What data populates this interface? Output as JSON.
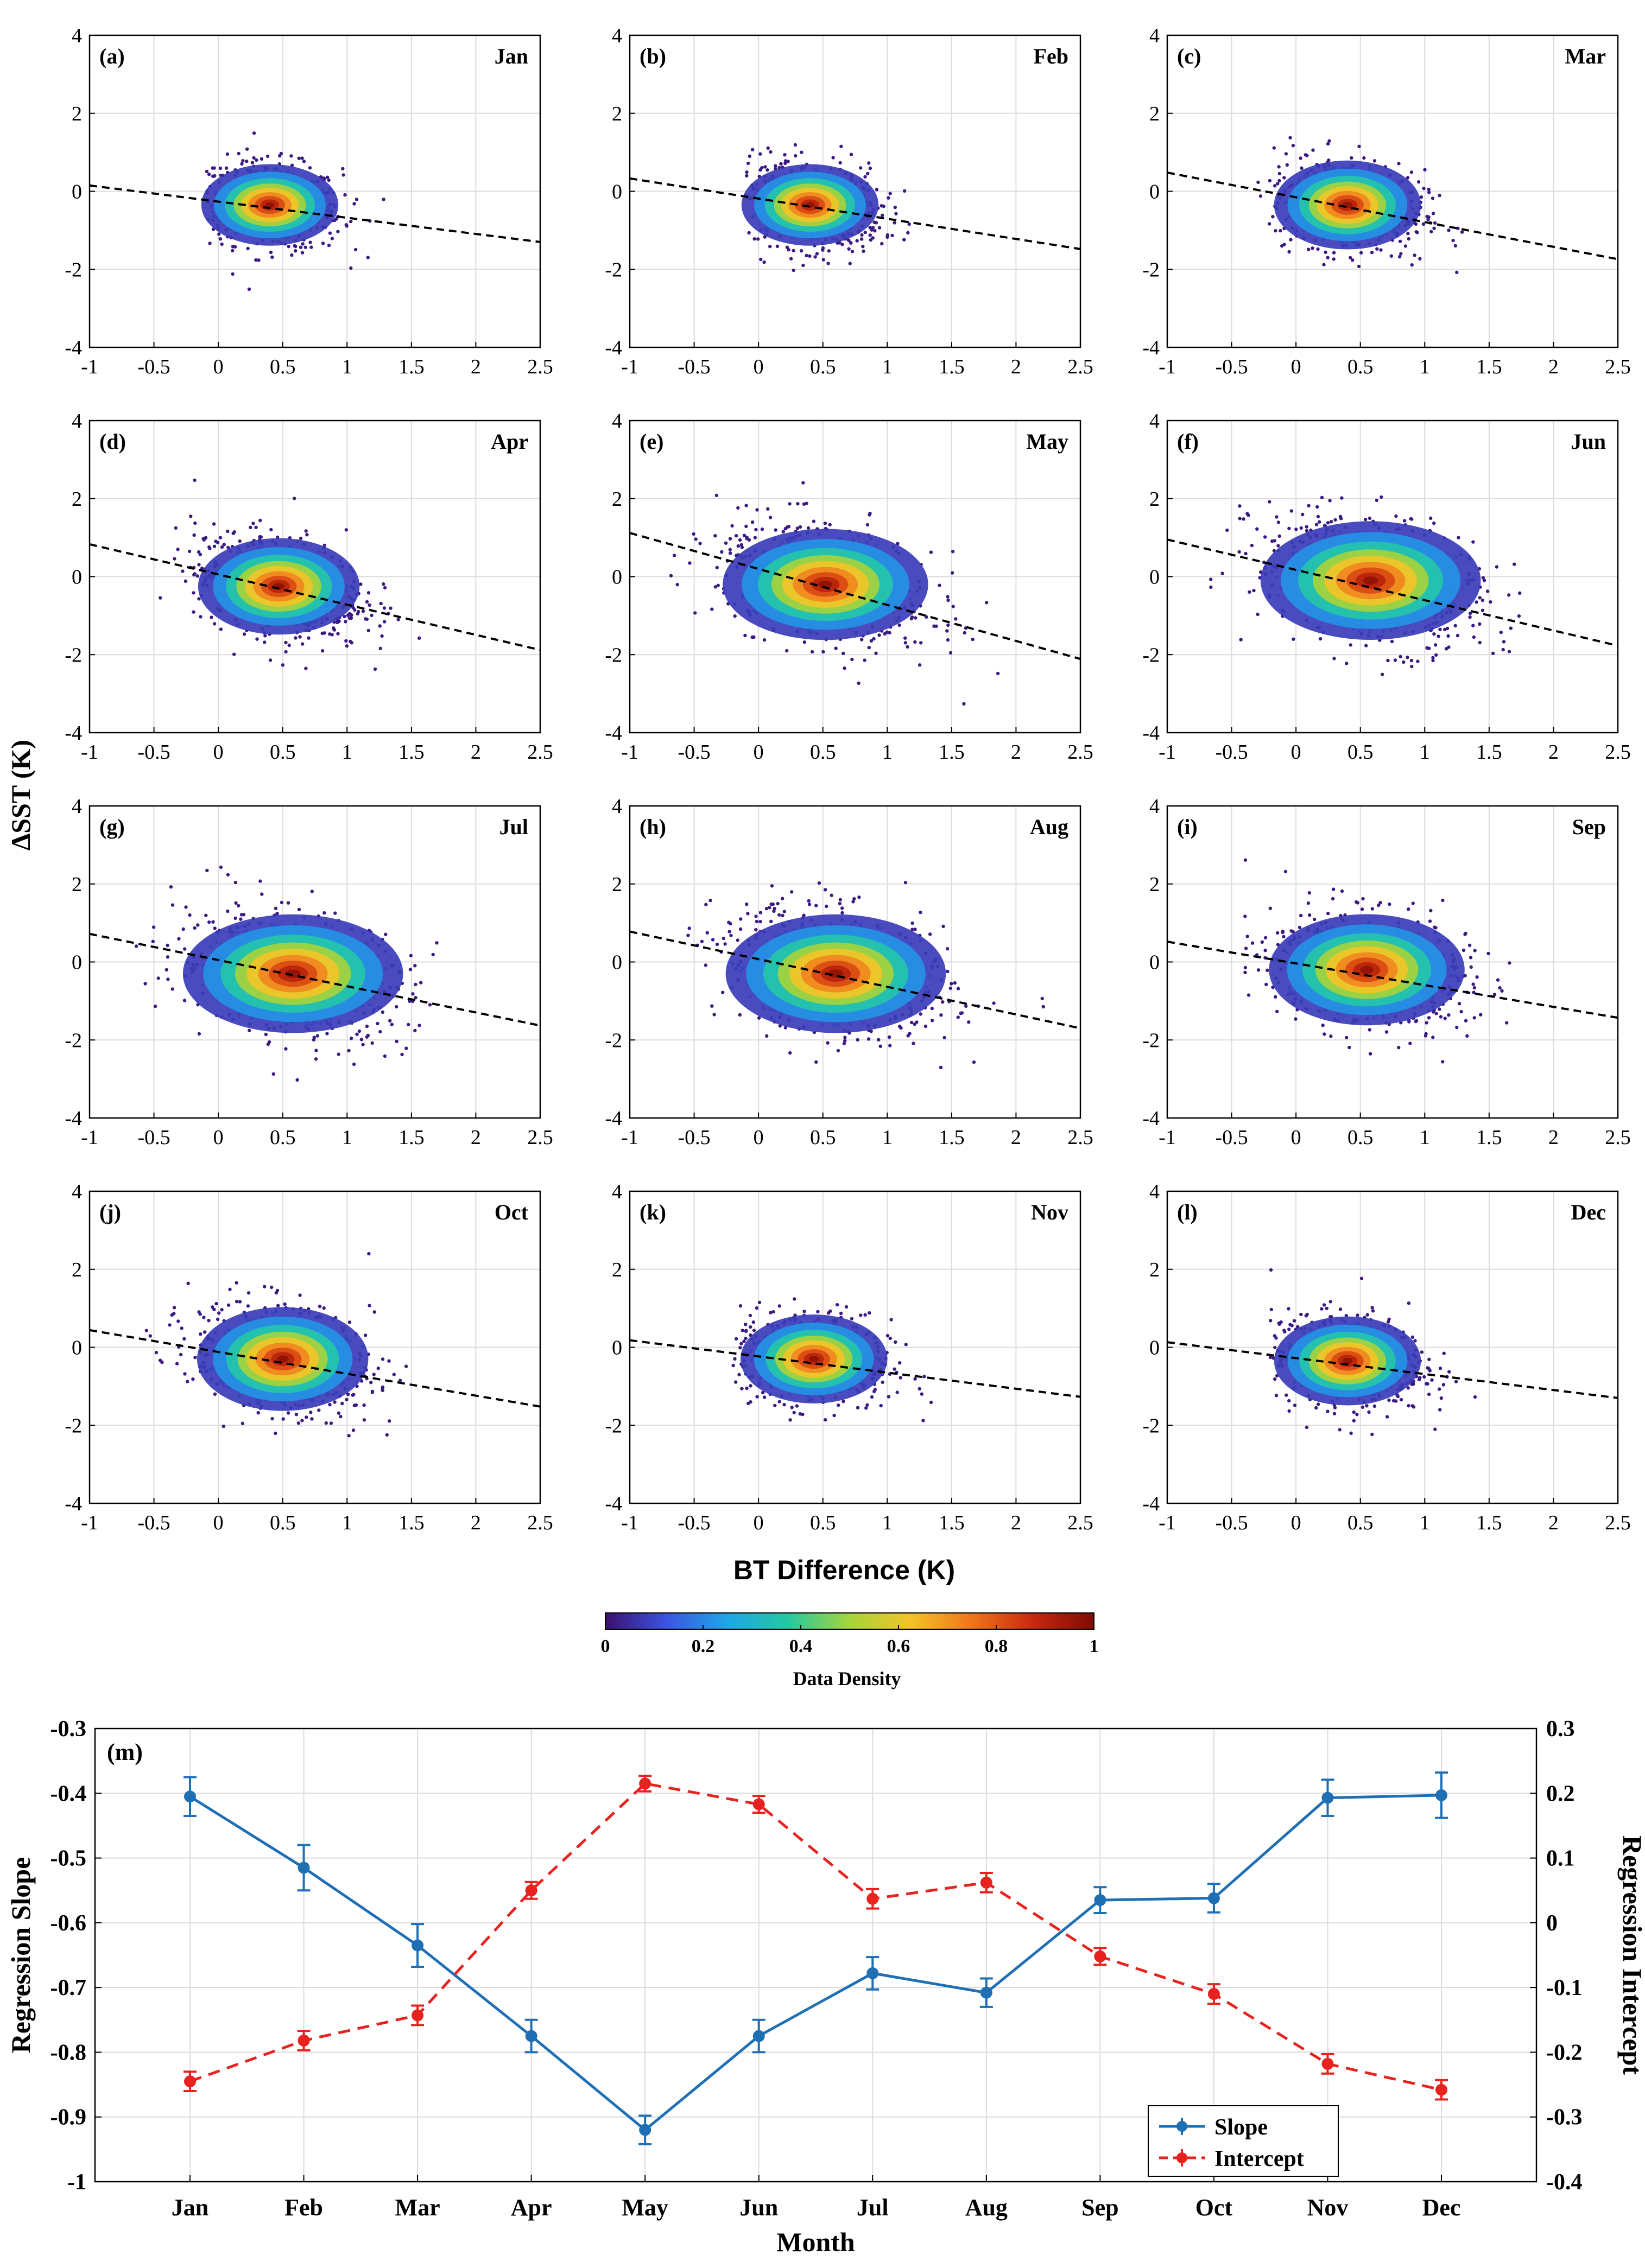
{
  "chart_data": {
    "scatter_panels": {
      "type": "scatter",
      "xlabel": "BT Difference (K)",
      "ylabel": "ΔSST (K)",
      "xlim": [
        -1,
        2.5
      ],
      "ylim": [
        -4,
        4
      ],
      "xticks": [
        -1,
        -0.5,
        0,
        0.5,
        1,
        1.5,
        2,
        2.5
      ],
      "xtick_labels": [
        "-1",
        "-0.5",
        "0",
        "0.5",
        "1",
        "1.5",
        "2",
        "2.5"
      ],
      "yticks": [
        -4,
        -2,
        0,
        2,
        4
      ],
      "ytick_labels": [
        "-4",
        "-2",
        "0",
        "2",
        "4"
      ],
      "grid": true,
      "colorbar": {
        "label": "Data Density",
        "range": [
          0,
          1
        ],
        "ticks": [
          0,
          0.2,
          0.4,
          0.6,
          0.8,
          1
        ],
        "tick_labels": [
          "0",
          "0.2",
          "0.4",
          "0.6",
          "0.8",
          "1"
        ],
        "colormap": [
          "#3b0f70",
          "#3a55e0",
          "#1fa6e8",
          "#25c9a0",
          "#a6d43c",
          "#f4c328",
          "#f0741c",
          "#c8290d",
          "#7d0a05"
        ]
      },
      "panels": [
        {
          "tag": "(a)",
          "month": "Jan",
          "fit": [
            -1,
            0.15,
            2.5,
            -1.3
          ],
          "center": [
            0.4,
            -0.35
          ],
          "spread": [
            0.28,
            0.55
          ],
          "xrange": [
            -0.1,
            1.9
          ]
        },
        {
          "tag": "(b)",
          "month": "Feb",
          "fit": [
            -1,
            0.33,
            2.5,
            -1.48
          ],
          "center": [
            0.4,
            -0.35
          ],
          "spread": [
            0.28,
            0.55
          ],
          "xrange": [
            -0.1,
            2.2
          ]
        },
        {
          "tag": "(c)",
          "month": "Mar",
          "fit": [
            -1,
            0.48,
            2.5,
            -1.74
          ],
          "center": [
            0.4,
            -0.35
          ],
          "spread": [
            0.3,
            0.6
          ],
          "xrange": [
            -0.3,
            1.8
          ]
        },
        {
          "tag": "(d)",
          "month": "Apr",
          "fit": [
            -1,
            0.83,
            2.5,
            -1.88
          ],
          "center": [
            0.47,
            -0.25
          ],
          "spread": [
            0.33,
            0.65
          ],
          "xrange": [
            -0.5,
            2.2
          ]
        },
        {
          "tag": "(e)",
          "month": "May",
          "fit": [
            -1,
            1.12,
            2.5,
            -2.11
          ],
          "center": [
            0.52,
            -0.2
          ],
          "spread": [
            0.42,
            0.75
          ],
          "xrange": [
            -0.7,
            1.9
          ]
        },
        {
          "tag": "(f)",
          "month": "Jun",
          "fit": [
            -1,
            0.95,
            2.5,
            -1.77
          ],
          "center": [
            0.58,
            -0.1
          ],
          "spread": [
            0.45,
            0.8
          ],
          "xrange": [
            -0.7,
            2.3
          ]
        },
        {
          "tag": "(g)",
          "month": "Jul",
          "fit": [
            -1,
            0.72,
            2.5,
            -1.63
          ],
          "center": [
            0.58,
            -0.3
          ],
          "spread": [
            0.45,
            0.8
          ],
          "xrange": [
            -0.8,
            2.0
          ]
        },
        {
          "tag": "(h)",
          "month": "Aug",
          "fit": [
            -1,
            0.78,
            2.5,
            -1.7
          ],
          "center": [
            0.6,
            -0.3
          ],
          "spread": [
            0.45,
            0.8
          ],
          "xrange": [
            -0.7,
            2.4
          ]
        },
        {
          "tag": "(i)",
          "month": "Sep",
          "fit": [
            -1,
            0.52,
            2.5,
            -1.43
          ],
          "center": [
            0.55,
            -0.2
          ],
          "spread": [
            0.4,
            0.75
          ],
          "xrange": [
            -0.4,
            1.8
          ]
        },
        {
          "tag": "(j)",
          "month": "Oct",
          "fit": [
            -1,
            0.44,
            2.5,
            -1.52
          ],
          "center": [
            0.5,
            -0.3
          ],
          "spread": [
            0.35,
            0.7
          ],
          "xrange": [
            -0.7,
            1.9
          ]
        },
        {
          "tag": "(k)",
          "month": "Nov",
          "fit": [
            -1,
            0.18,
            2.5,
            -1.27
          ],
          "center": [
            0.43,
            -0.3
          ],
          "spread": [
            0.3,
            0.6
          ],
          "xrange": [
            -0.2,
            1.9
          ]
        },
        {
          "tag": "(l)",
          "month": "Dec",
          "fit": [
            -1,
            0.13,
            2.5,
            -1.3
          ],
          "center": [
            0.4,
            -0.35
          ],
          "spread": [
            0.3,
            0.6
          ],
          "xrange": [
            -0.2,
            2.2
          ]
        }
      ]
    },
    "regression_panel": {
      "type": "line",
      "tag": "(m)",
      "categories": [
        "Jan",
        "Feb",
        "Mar",
        "Apr",
        "May",
        "Jun",
        "Jul",
        "Aug",
        "Sep",
        "Oct",
        "Nov",
        "Dec"
      ],
      "xlabel": "Month",
      "ylabel_left": "Regression Slope",
      "ylabel_right": "Regression Intercept",
      "ylim_left": [
        -0.3,
        -1
      ],
      "ylim_right": [
        -0.4,
        0.3
      ],
      "yticks_left": [
        "-0.3",
        "-0.4",
        "-0.5",
        "-0.6",
        "-0.7",
        "-0.8",
        "-0.9",
        "-1"
      ],
      "yticks_right": [
        "0.3",
        "0.2",
        "0.1",
        "0",
        "-0.1",
        "-0.2",
        "-0.3",
        "-0.4"
      ],
      "yticks_left_values": [
        -0.3,
        -0.4,
        -0.5,
        -0.6,
        -0.7,
        -0.8,
        -0.9,
        -1
      ],
      "yticks_right_values": [
        0.3,
        0.2,
        0.1,
        0,
        -0.1,
        -0.2,
        -0.3,
        -0.4
      ],
      "grid": true,
      "legend_position": "bottom-right",
      "series": [
        {
          "name": "Slope",
          "axis": "left",
          "color": "#1f6fb5",
          "style": "solid",
          "values": [
            -0.405,
            -0.515,
            -0.635,
            -0.775,
            -0.92,
            -0.775,
            -0.678,
            -0.708,
            -0.565,
            -0.562,
            -0.407,
            -0.403
          ],
          "errors": [
            0.03,
            0.035,
            0.033,
            0.025,
            0.022,
            0.025,
            0.025,
            0.022,
            0.02,
            0.022,
            0.028,
            0.035
          ]
        },
        {
          "name": "Intercept",
          "axis": "right",
          "color": "#e8221e",
          "style": "dashed",
          "values": [
            -0.245,
            -0.182,
            -0.143,
            0.05,
            0.215,
            0.183,
            0.037,
            0.062,
            -0.052,
            -0.11,
            -0.218,
            -0.258
          ],
          "errors": [
            0.015,
            0.015,
            0.015,
            0.013,
            0.012,
            0.013,
            0.015,
            0.015,
            0.013,
            0.015,
            0.015,
            0.015
          ]
        }
      ]
    }
  }
}
